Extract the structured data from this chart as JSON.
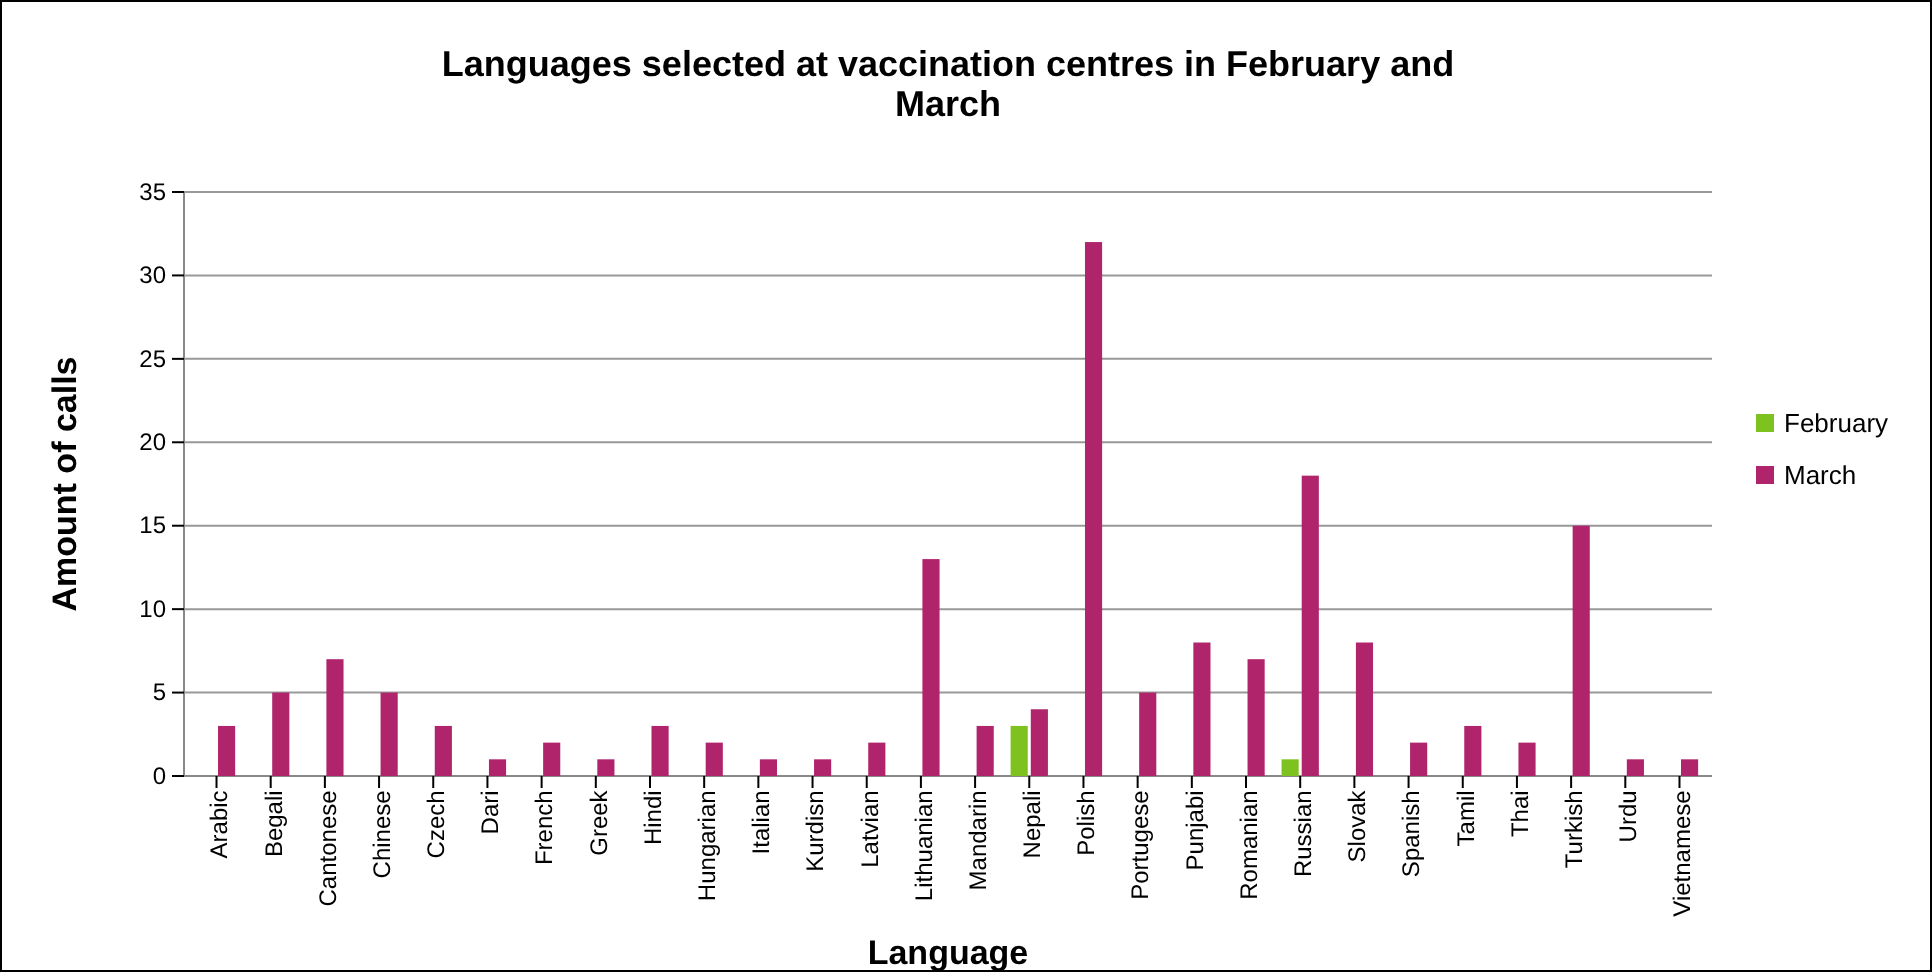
{
  "chart_data": {
    "type": "bar",
    "title": "Languages  selected at vaccination  centres in February and March",
    "xlabel": "Language",
    "ylabel": "Amount of calls",
    "categories": [
      "Arabic",
      "Begali",
      "Cantonese",
      "Chinese",
      "Czech",
      "Dari",
      "French",
      "Greek",
      "Hindi",
      "Hungarian",
      "Italian",
      "Kurdisn",
      "Latvian",
      "Lithuanian",
      "Mandarin",
      "Nepali",
      "Polish",
      "Portugese",
      "Punjabi",
      "Romanian",
      "Russian",
      "Slovak",
      "Spanish",
      "Tamil",
      "Thai",
      "Turkish",
      "Urdu",
      "Vietnamese"
    ],
    "series": [
      {
        "name": "February",
        "color": "#7dc21e",
        "values": [
          0,
          0,
          0,
          0,
          0,
          0,
          0,
          0,
          0,
          0,
          0,
          0,
          0,
          0,
          0,
          3,
          0,
          0,
          0,
          0,
          1,
          0,
          0,
          0,
          0,
          0,
          0,
          0
        ]
      },
      {
        "name": "March",
        "color": "#b0246c",
        "values": [
          3,
          5,
          7,
          5,
          3,
          1,
          2,
          1,
          3,
          2,
          1,
          1,
          2,
          13,
          3,
          4,
          32,
          5,
          8,
          7,
          18,
          8,
          2,
          3,
          2,
          15,
          1,
          1
        ]
      }
    ],
    "ylim": [
      0,
      35
    ],
    "yticks": [
      0,
      5,
      10,
      15,
      20,
      25,
      30,
      35
    ],
    "grid": "y",
    "legend": "right"
  }
}
